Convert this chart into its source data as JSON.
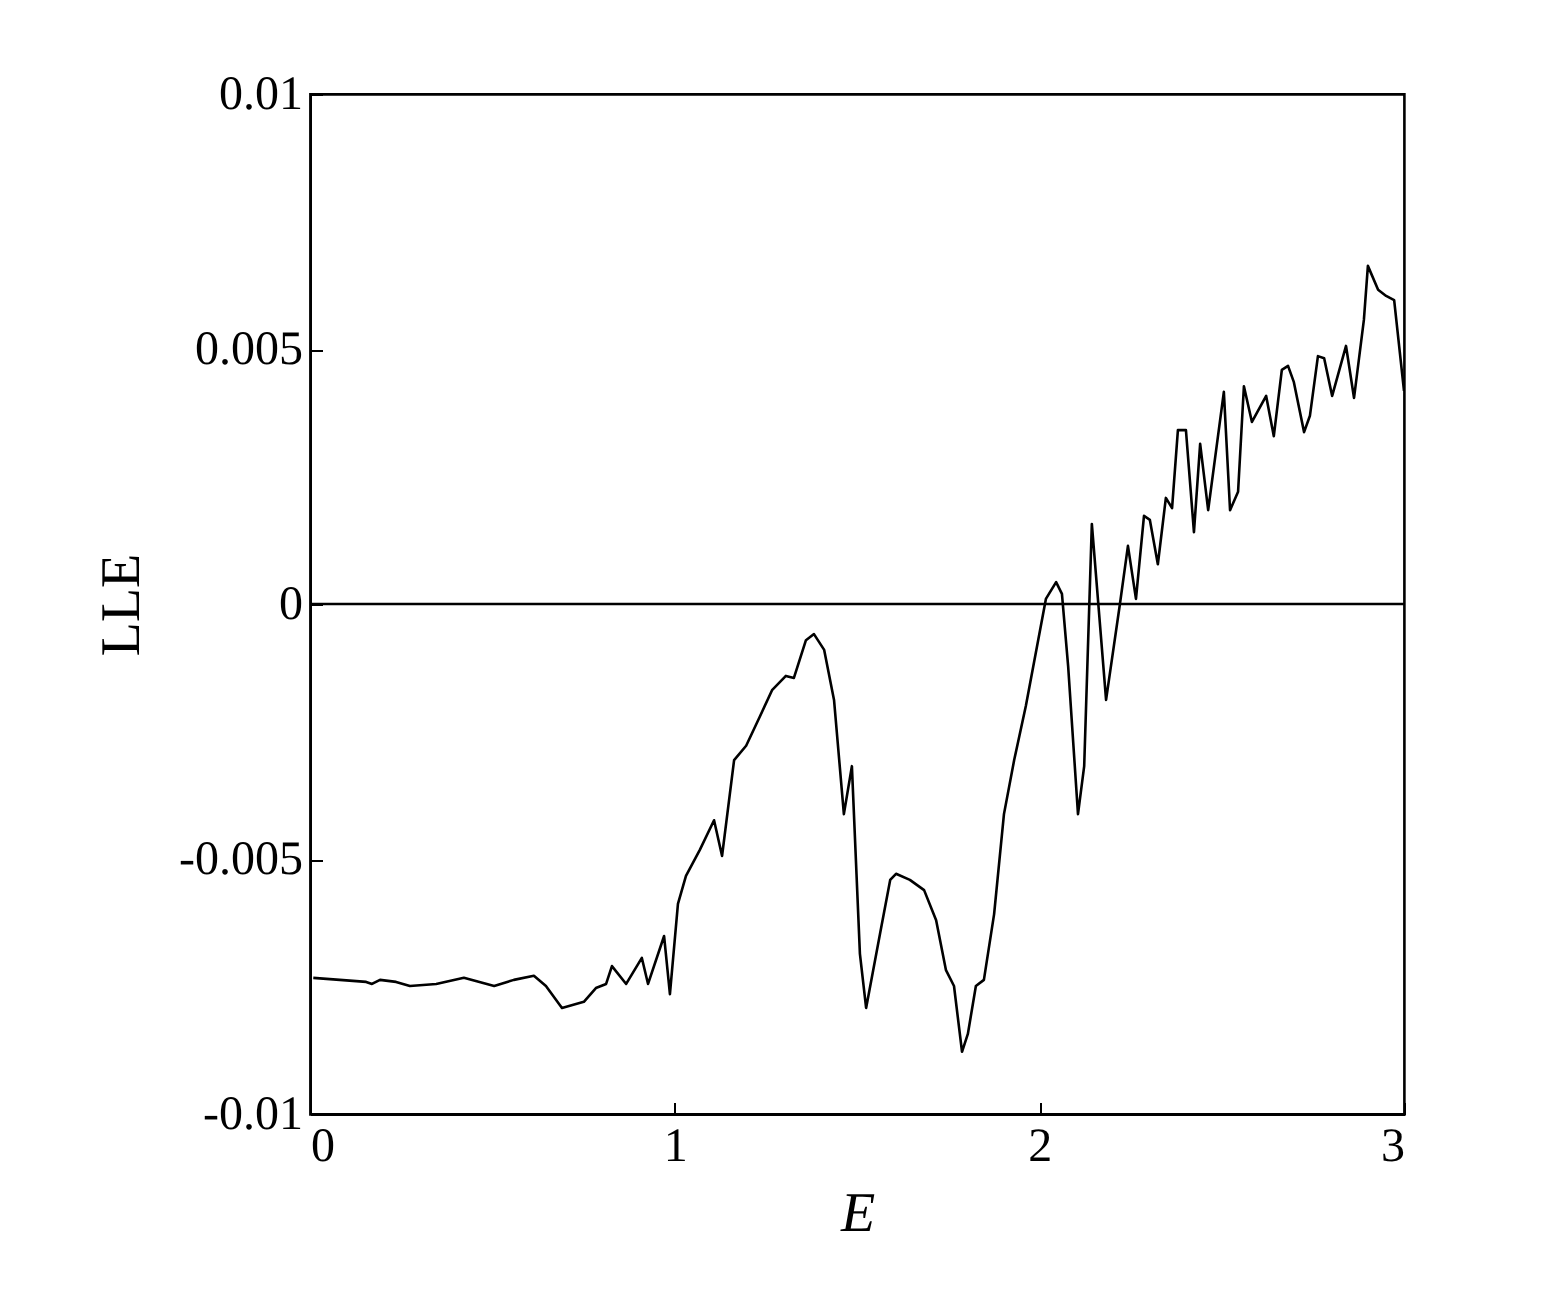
{
  "chart_data": {
    "type": "line",
    "xlabel": "E",
    "ylabel": "LLE",
    "xlim": [
      0,
      3
    ],
    "ylim": [
      -0.01,
      0.01
    ],
    "xticks": [
      0,
      1,
      2,
      3
    ],
    "yticks": [
      -0.01,
      -0.005,
      0,
      0.005,
      0.01
    ],
    "grid": false,
    "marker": "none",
    "line_style": "solid",
    "ref_lines": [
      {
        "axis": "y",
        "value": 0,
        "color": "#000000"
      }
    ],
    "series": [
      {
        "color": "#000000",
        "x": [
          0.009,
          0.154,
          0.17,
          0.192,
          0.236,
          0.274,
          0.346,
          0.422,
          0.505,
          0.559,
          0.614,
          0.647,
          0.691,
          0.751,
          0.784,
          0.812,
          0.828,
          0.867,
          0.91,
          0.927,
          0.971,
          0.987,
          1.009,
          1.031,
          1.069,
          1.108,
          1.13,
          1.163,
          1.196,
          1.234,
          1.267,
          1.305,
          1.327,
          1.36,
          1.382,
          1.41,
          1.437,
          1.464,
          1.486,
          1.508,
          1.525,
          1.563,
          1.591,
          1.607,
          1.645,
          1.684,
          1.717,
          1.744,
          1.766,
          1.788,
          1.804,
          1.826,
          1.848,
          1.876,
          1.903,
          1.931,
          1.963,
          2.018,
          2.046,
          2.062,
          2.079,
          2.106,
          2.123,
          2.144,
          2.183,
          2.221,
          2.243,
          2.265,
          2.287,
          2.303,
          2.325,
          2.347,
          2.364,
          2.38,
          2.402,
          2.424,
          2.441,
          2.463,
          2.506,
          2.523,
          2.545,
          2.561,
          2.583,
          2.622,
          2.643,
          2.665,
          2.682,
          2.698,
          2.726,
          2.742,
          2.764,
          2.781,
          2.803,
          2.841,
          2.863,
          2.89,
          2.901,
          2.929,
          2.951,
          2.973,
          3.0
        ],
        "values": [
          -0.00733,
          -0.00741,
          -0.00745,
          -0.00737,
          -0.00741,
          -0.00749,
          -0.00745,
          -0.00733,
          -0.00749,
          -0.00737,
          -0.00729,
          -0.00749,
          -0.00792,
          -0.0078,
          -0.00753,
          -0.00745,
          -0.0071,
          -0.00745,
          -0.00694,
          -0.00745,
          -0.00651,
          -0.00765,
          -0.00588,
          -0.00533,
          -0.00482,
          -0.00424,
          -0.00494,
          -0.00306,
          -0.00278,
          -0.0022,
          -0.00169,
          -0.00141,
          -0.00145,
          -0.00071,
          -0.00059,
          -0.0009,
          -0.00188,
          -0.00412,
          -0.00318,
          -0.00686,
          -0.00792,
          -0.00647,
          -0.00541,
          -0.00529,
          -0.00541,
          -0.00561,
          -0.0062,
          -0.00718,
          -0.00749,
          -0.00878,
          -0.00843,
          -0.00749,
          -0.00737,
          -0.00608,
          -0.00412,
          -0.00306,
          -0.002,
          0.0001,
          0.00043,
          0.0002,
          -0.00122,
          -0.00412,
          -0.00318,
          0.00157,
          -0.00188,
          0,
          0.00114,
          0.0001,
          0.00173,
          0.00165,
          0.00078,
          0.00208,
          0.00188,
          0.00341,
          0.00341,
          0.00141,
          0.00314,
          0.00184,
          0.00416,
          0.00184,
          0.0022,
          0.00427,
          0.00357,
          0.00408,
          0.00329,
          0.00459,
          0.00467,
          0.00435,
          0.00337,
          0.00369,
          0.00486,
          0.00482,
          0.00408,
          0.00506,
          0.00404,
          0.00557,
          0.00663,
          0.00616,
          0.00604,
          0.00596,
          0.00418
        ]
      }
    ]
  }
}
